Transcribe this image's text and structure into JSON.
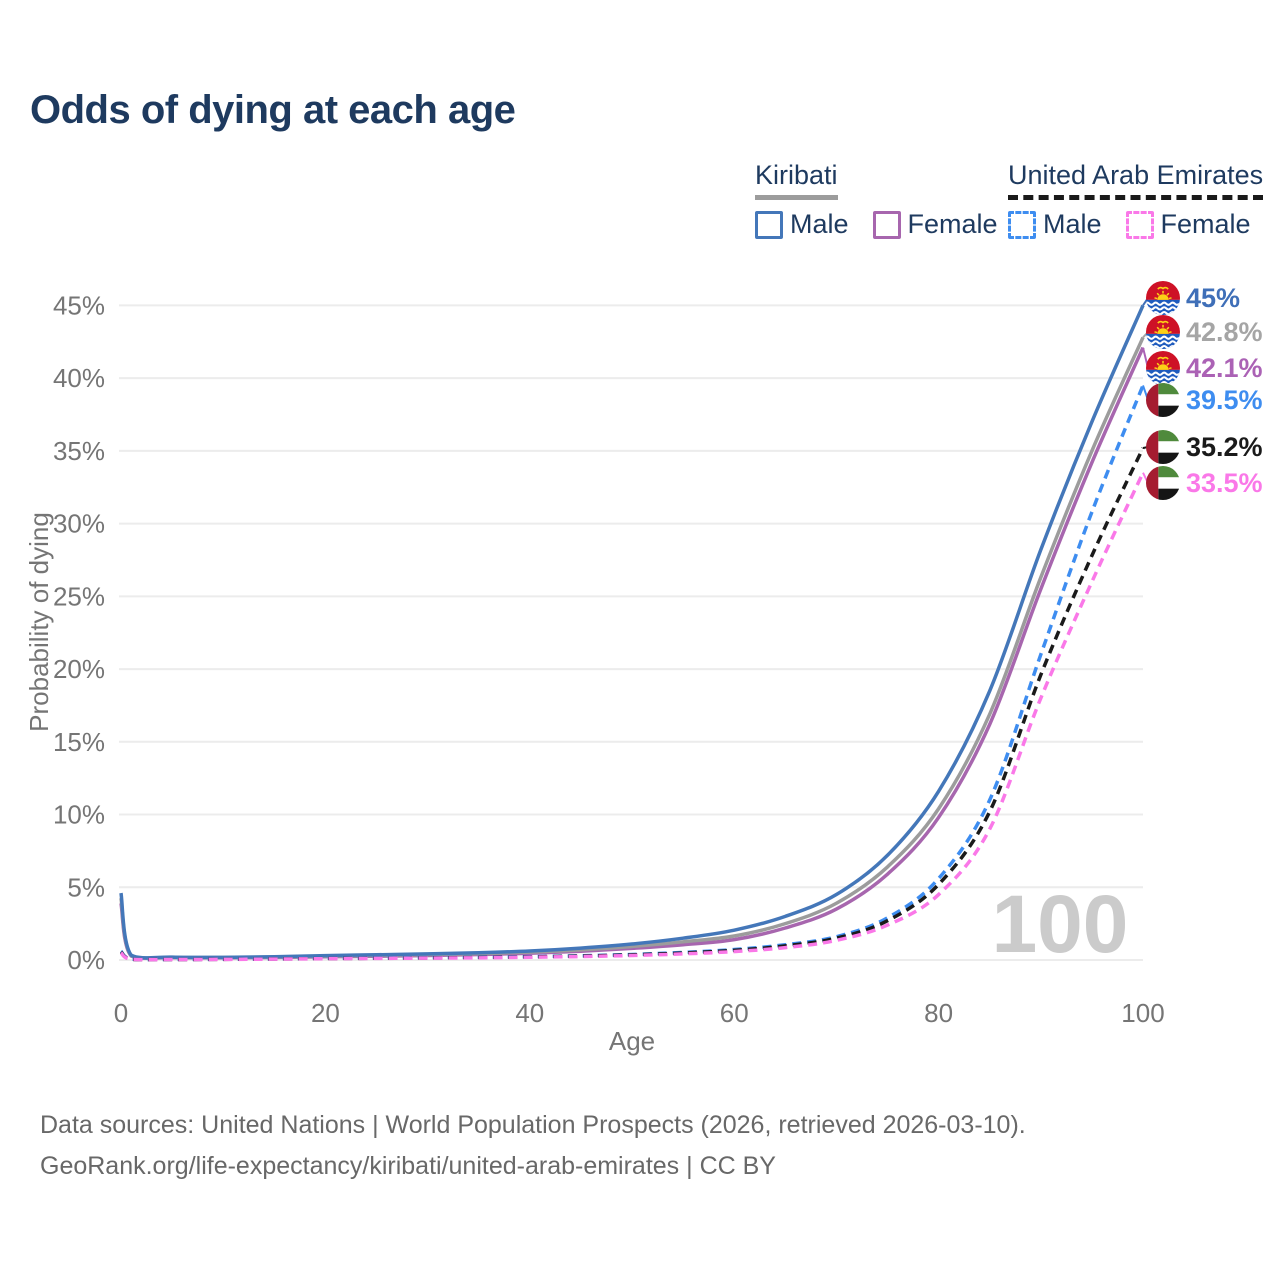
{
  "title": "Odds of dying at each age",
  "legend": {
    "groups": [
      {
        "title": "Kiribati",
        "underline_color": "#9C9C9C",
        "underline_style": "solid",
        "items": [
          {
            "label": "Male",
            "color": "#4477B9",
            "dashed": false
          },
          {
            "label": "Female",
            "color": "#A766AE",
            "dashed": false
          }
        ]
      },
      {
        "title": "United Arab Emirates",
        "underline_color": "#1A1A1A",
        "underline_style": "dashed",
        "items": [
          {
            "label": "Male",
            "color": "#3E8DF0",
            "dashed": true
          },
          {
            "label": "Female",
            "color": "#FA78E8",
            "dashed": true
          }
        ]
      }
    ]
  },
  "chart_data": {
    "type": "line",
    "title": "Odds of dying at each age",
    "xlabel": "Age",
    "ylabel": "Probability of dying",
    "x_range": [
      0,
      100
    ],
    "y_range": [
      0,
      45
    ],
    "x_ticks": [
      0,
      20,
      40,
      60,
      80,
      100
    ],
    "y_ticks": [
      0,
      5,
      10,
      15,
      20,
      25,
      30,
      35,
      40,
      45
    ],
    "y_tick_suffix": "%",
    "grid": "horizontal-only",
    "legend_position": "top-right",
    "watermark": "100",
    "series": [
      {
        "name": "Kiribati Female",
        "color": "#A766AE",
        "dashed": false,
        "points": [
          [
            0,
            3.9
          ],
          [
            1,
            0.27
          ],
          [
            5,
            0.16
          ],
          [
            10,
            0.15
          ],
          [
            15,
            0.17
          ],
          [
            20,
            0.22
          ],
          [
            25,
            0.26
          ],
          [
            30,
            0.31
          ],
          [
            35,
            0.38
          ],
          [
            40,
            0.46
          ],
          [
            45,
            0.6
          ],
          [
            50,
            0.8
          ],
          [
            55,
            1.05
          ],
          [
            60,
            1.4
          ],
          [
            65,
            2.2
          ],
          [
            70,
            3.5
          ],
          [
            75,
            5.9
          ],
          [
            80,
            9.8
          ],
          [
            85,
            16.2
          ],
          [
            90,
            25.5
          ],
          [
            95,
            34.2
          ],
          [
            100,
            42.1
          ]
        ]
      },
      {
        "name": "Kiribati",
        "color": "#9C9C9C",
        "dashed": false,
        "points": [
          [
            0,
            4.25
          ],
          [
            1,
            0.3
          ],
          [
            5,
            0.18
          ],
          [
            10,
            0.17
          ],
          [
            15,
            0.2
          ],
          [
            20,
            0.26
          ],
          [
            25,
            0.31
          ],
          [
            30,
            0.37
          ],
          [
            35,
            0.44
          ],
          [
            40,
            0.54
          ],
          [
            45,
            0.7
          ],
          [
            50,
            0.93
          ],
          [
            55,
            1.25
          ],
          [
            60,
            1.65
          ],
          [
            65,
            2.5
          ],
          [
            70,
            3.9
          ],
          [
            75,
            6.4
          ],
          [
            80,
            10.4
          ],
          [
            85,
            16.9
          ],
          [
            90,
            26.3
          ],
          [
            95,
            35.0
          ],
          [
            100,
            42.8
          ]
        ]
      },
      {
        "name": "Kiribati Male",
        "color": "#4477B9",
        "dashed": false,
        "points": [
          [
            0,
            4.6
          ],
          [
            1,
            0.33
          ],
          [
            5,
            0.2
          ],
          [
            10,
            0.18
          ],
          [
            15,
            0.22
          ],
          [
            20,
            0.3
          ],
          [
            25,
            0.36
          ],
          [
            30,
            0.42
          ],
          [
            35,
            0.5
          ],
          [
            40,
            0.62
          ],
          [
            45,
            0.82
          ],
          [
            50,
            1.1
          ],
          [
            55,
            1.5
          ],
          [
            60,
            2.05
          ],
          [
            65,
            3.0
          ],
          [
            70,
            4.5
          ],
          [
            75,
            7.2
          ],
          [
            80,
            11.6
          ],
          [
            85,
            18.5
          ],
          [
            90,
            28.2
          ],
          [
            95,
            37.0
          ],
          [
            100,
            45.0
          ]
        ]
      },
      {
        "name": "United Arab Emirates Male",
        "color": "#3E8DF0",
        "dashed": true,
        "points": [
          [
            0,
            0.6
          ],
          [
            1,
            0.06
          ],
          [
            5,
            0.04
          ],
          [
            10,
            0.05
          ],
          [
            15,
            0.08
          ],
          [
            20,
            0.12
          ],
          [
            25,
            0.14
          ],
          [
            30,
            0.16
          ],
          [
            35,
            0.19
          ],
          [
            40,
            0.23
          ],
          [
            45,
            0.29
          ],
          [
            50,
            0.38
          ],
          [
            55,
            0.52
          ],
          [
            60,
            0.72
          ],
          [
            65,
            1.05
          ],
          [
            70,
            1.6
          ],
          [
            75,
            2.9
          ],
          [
            80,
            5.6
          ],
          [
            85,
            11.0
          ],
          [
            90,
            21.0
          ],
          [
            95,
            30.8
          ],
          [
            100,
            39.5
          ]
        ]
      },
      {
        "name": "United Arab Emirates",
        "color": "#1A1A1A",
        "dashed": true,
        "points": [
          [
            0,
            0.55
          ],
          [
            1,
            0.055
          ],
          [
            5,
            0.038
          ],
          [
            10,
            0.045
          ],
          [
            15,
            0.07
          ],
          [
            20,
            0.1
          ],
          [
            25,
            0.12
          ],
          [
            30,
            0.14
          ],
          [
            35,
            0.17
          ],
          [
            40,
            0.21
          ],
          [
            45,
            0.27
          ],
          [
            50,
            0.35
          ],
          [
            55,
            0.48
          ],
          [
            60,
            0.66
          ],
          [
            65,
            0.97
          ],
          [
            70,
            1.5
          ],
          [
            75,
            2.7
          ],
          [
            80,
            5.2
          ],
          [
            85,
            10.2
          ],
          [
            90,
            19.6
          ],
          [
            95,
            27.8
          ],
          [
            100,
            35.2
          ]
        ]
      },
      {
        "name": "United Arab Emirates Female",
        "color": "#FA78E8",
        "dashed": true,
        "points": [
          [
            0,
            0.5
          ],
          [
            1,
            0.05
          ],
          [
            5,
            0.035
          ],
          [
            10,
            0.04
          ],
          [
            15,
            0.06
          ],
          [
            20,
            0.09
          ],
          [
            25,
            0.11
          ],
          [
            30,
            0.13
          ],
          [
            35,
            0.15
          ],
          [
            40,
            0.19
          ],
          [
            45,
            0.24
          ],
          [
            50,
            0.31
          ],
          [
            55,
            0.42
          ],
          [
            60,
            0.58
          ],
          [
            65,
            0.85
          ],
          [
            70,
            1.35
          ],
          [
            75,
            2.4
          ],
          [
            80,
            4.5
          ],
          [
            85,
            9.0
          ],
          [
            90,
            18.0
          ],
          [
            95,
            26.0
          ],
          [
            100,
            33.5
          ]
        ]
      }
    ],
    "end_labels": [
      {
        "text": "45%",
        "value": 45.0,
        "color": "#3F6FB8",
        "flag": "kiribati",
        "series": "Kiribati Male"
      },
      {
        "text": "42.8%",
        "value": 42.8,
        "color": "#A5A5A5",
        "flag": "kiribati",
        "series": "Kiribati"
      },
      {
        "text": "42.1%",
        "value": 42.1,
        "color": "#AB62B5",
        "flag": "kiribati",
        "series": "Kiribati Female"
      },
      {
        "text": "39.5%",
        "value": 39.5,
        "color": "#3E8DF0",
        "flag": "uae",
        "series": "United Arab Emirates Male"
      },
      {
        "text": "35.2%",
        "value": 35.2,
        "color": "#1A1A1A",
        "flag": "uae",
        "series": "United Arab Emirates"
      },
      {
        "text": "33.5%",
        "value": 33.5,
        "color": "#FA78E8",
        "flag": "uae",
        "series": "United Arab Emirates Female"
      }
    ]
  },
  "footer": {
    "line1": "Data sources: United Nations | World Population Prospects (2026, retrieved 2026-03-10).",
    "line2": "GeoRank.org/life-expectancy/kiribati/united-arab-emirates | CC BY"
  }
}
